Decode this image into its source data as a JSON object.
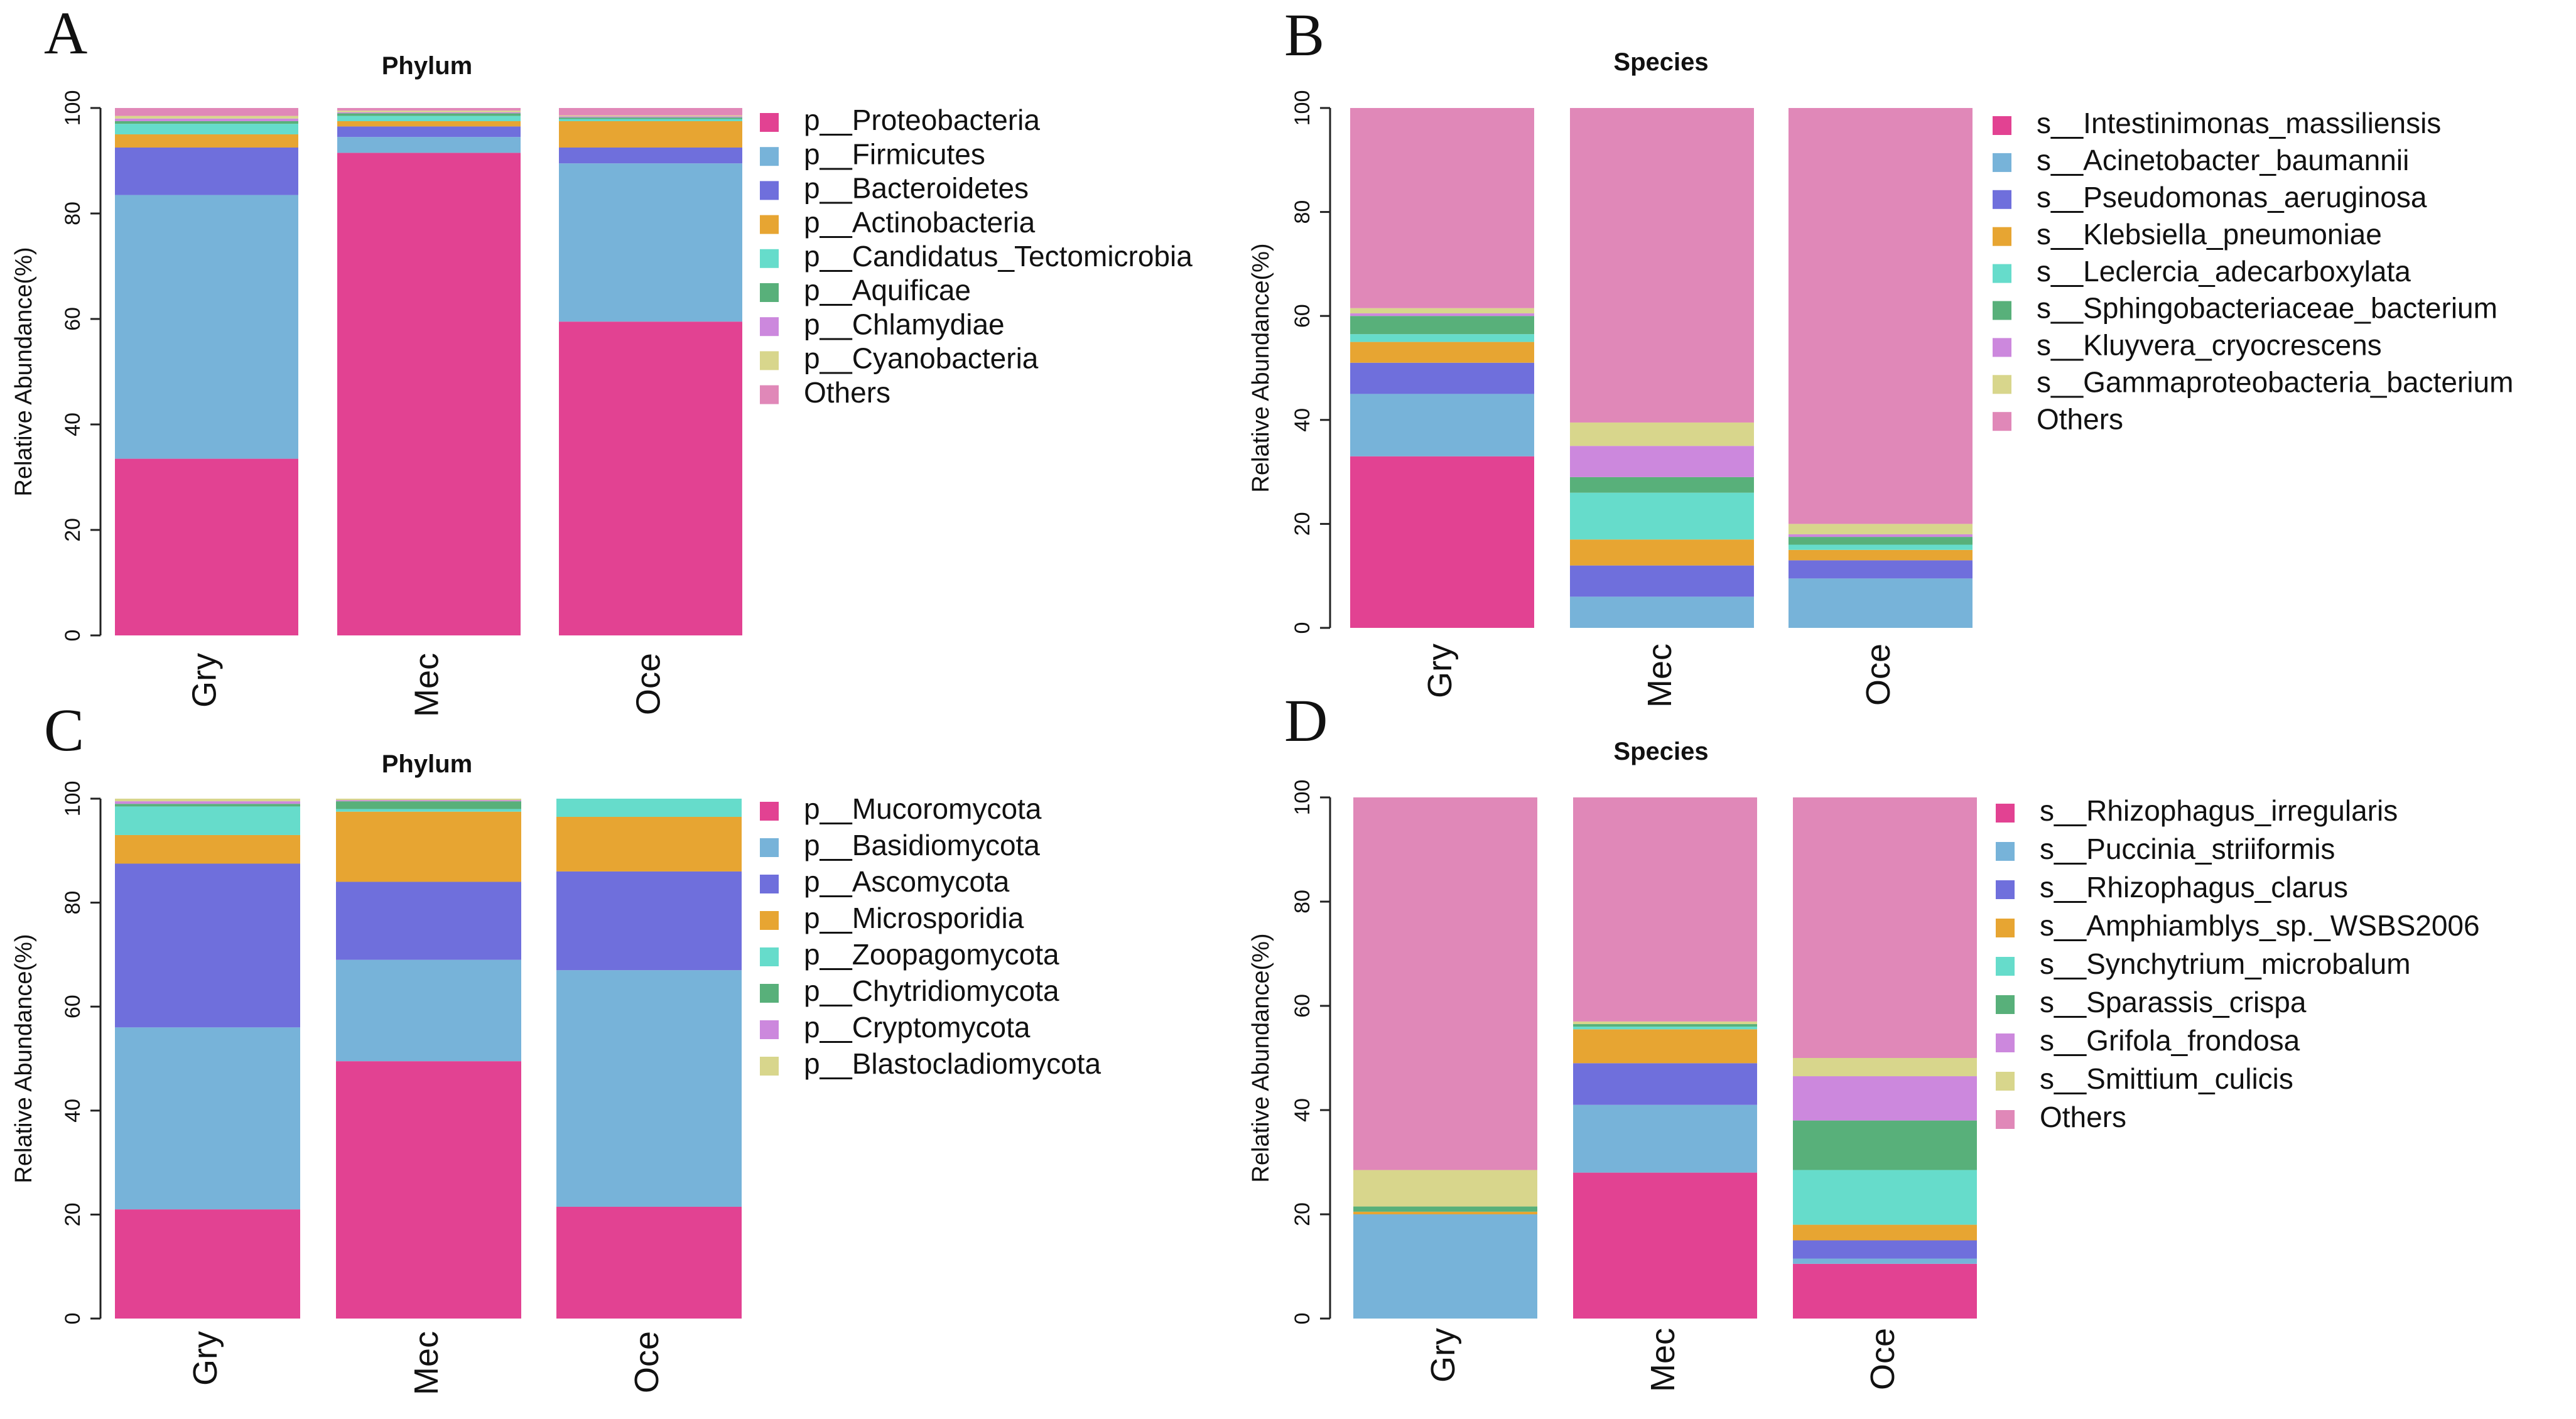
{
  "chart_data": [
    {
      "panel": "A",
      "type": "bar",
      "stacked": true,
      "title": "Phylum",
      "xlabel": "",
      "ylabel": "Relative Abundance(%)",
      "ylim": [
        0,
        100
      ],
      "yticks": [
        "0",
        "20",
        "40",
        "60",
        "80",
        "100"
      ],
      "categories": [
        "Gry",
        "Mec",
        "Oce"
      ],
      "legend_position": "right",
      "series": [
        {
          "name": "p__Proteobacteria",
          "color": "#e24292",
          "values": [
            33.5,
            91.5,
            59.5
          ]
        },
        {
          "name": "p__Firmicutes",
          "color": "#77b3d9",
          "values": [
            50.0,
            3.0,
            30.0
          ]
        },
        {
          "name": "p__Bacteroidetes",
          "color": "#6f6fdc",
          "values": [
            9.0,
            2.0,
            3.0
          ]
        },
        {
          "name": "p__Actinobacteria",
          "color": "#e7a532",
          "values": [
            2.5,
            1.0,
            5.0
          ]
        },
        {
          "name": "p__Candidatus_Tectomicrobia",
          "color": "#66dccb",
          "values": [
            2.0,
            1.0,
            0.4
          ]
        },
        {
          "name": "p__Aquificae",
          "color": "#58b07a",
          "values": [
            0.5,
            0.5,
            0.3
          ]
        },
        {
          "name": "p__Chlamydiae",
          "color": "#cc88dd",
          "values": [
            0.5,
            0.2,
            0.2
          ]
        },
        {
          "name": "p__Cyanobacteria",
          "color": "#d8d68c",
          "values": [
            0.5,
            0.3,
            0.2
          ]
        },
        {
          "name": "Others",
          "color": "#e088b8",
          "values": [
            1.5,
            0.5,
            1.4
          ]
        }
      ]
    },
    {
      "panel": "B",
      "type": "bar",
      "stacked": true,
      "title": "Species",
      "xlabel": "",
      "ylabel": "Relative Abundance(%)",
      "ylim": [
        0,
        100
      ],
      "yticks": [
        "0",
        "20",
        "40",
        "60",
        "80",
        "100"
      ],
      "categories": [
        "Gry",
        "Mec",
        "Oce"
      ],
      "legend_position": "right",
      "series": [
        {
          "name": "s__Intestinimonas_massiliensis",
          "color": "#e24292",
          "values": [
            33.0,
            0.0,
            0.0
          ]
        },
        {
          "name": "s__Acinetobacter_baumannii",
          "color": "#77b3d9",
          "values": [
            12.0,
            6.0,
            9.5
          ]
        },
        {
          "name": "s__Pseudomonas_aeruginosa",
          "color": "#6f6fdc",
          "values": [
            6.0,
            6.0,
            3.5
          ]
        },
        {
          "name": "s__Klebsiella_pneumoniae",
          "color": "#e7a532",
          "values": [
            4.0,
            5.0,
            2.0
          ]
        },
        {
          "name": "s__Leclercia_adecarboxylata",
          "color": "#66dccb",
          "values": [
            1.5,
            9.0,
            1.0
          ]
        },
        {
          "name": "s__Sphingobacteriaceae_bacterium",
          "color": "#58b07a",
          "values": [
            3.5,
            3.0,
            1.5
          ]
        },
        {
          "name": "s__Kluyvera_cryocrescens",
          "color": "#cc88dd",
          "values": [
            0.5,
            6.0,
            0.5
          ]
        },
        {
          "name": "s__Gammaproteobacteria_bacterium",
          "color": "#d8d68c",
          "values": [
            1.0,
            4.5,
            2.0
          ]
        },
        {
          "name": "Others",
          "color": "#e088b8",
          "values": [
            38.5,
            60.5,
            80.0
          ]
        }
      ]
    },
    {
      "panel": "C",
      "type": "bar",
      "stacked": true,
      "title": "Phylum",
      "xlabel": "",
      "ylabel": "Relative Abundance(%)",
      "ylim": [
        0,
        100
      ],
      "yticks": [
        "0",
        "20",
        "40",
        "60",
        "80",
        "100"
      ],
      "categories": [
        "Gry",
        "Mec",
        "Oce"
      ],
      "legend_position": "right",
      "series": [
        {
          "name": "p__Mucoromycota",
          "color": "#e24292",
          "values": [
            21.0,
            49.5,
            21.5
          ]
        },
        {
          "name": "p__Basidiomycota",
          "color": "#77b3d9",
          "values": [
            35.0,
            19.5,
            45.5
          ]
        },
        {
          "name": "p__Ascomycota",
          "color": "#6f6fdc",
          "values": [
            31.5,
            15.0,
            19.0
          ]
        },
        {
          "name": "p__Microsporidia",
          "color": "#e7a532",
          "values": [
            5.5,
            13.5,
            10.5
          ]
        },
        {
          "name": "p__Zoopagomycota",
          "color": "#66dccb",
          "values": [
            5.5,
            0.5,
            3.5
          ]
        },
        {
          "name": "p__Chytridiomycota",
          "color": "#58b07a",
          "values": [
            0.5,
            1.5,
            0.0
          ]
        },
        {
          "name": "p__Cryptomycota",
          "color": "#cc88dd",
          "values": [
            0.5,
            0.2,
            0.0
          ]
        },
        {
          "name": "p__Blastocladiomycota",
          "color": "#d8d68c",
          "values": [
            0.5,
            0.3,
            0.0
          ]
        }
      ]
    },
    {
      "panel": "D",
      "type": "bar",
      "stacked": true,
      "title": "Species",
      "xlabel": "",
      "ylabel": "Relative Abundance(%)",
      "ylim": [
        0,
        100
      ],
      "yticks": [
        "0",
        "20",
        "40",
        "60",
        "80",
        "100"
      ],
      "categories": [
        "Gry",
        "Mec",
        "Oce"
      ],
      "legend_position": "right",
      "series": [
        {
          "name": "s__Rhizophagus_irregularis",
          "color": "#e24292",
          "values": [
            0.0,
            28.0,
            10.5
          ]
        },
        {
          "name": "s__Puccinia_striiformis",
          "color": "#77b3d9",
          "values": [
            20.0,
            13.0,
            1.0
          ]
        },
        {
          "name": "s__Rhizophagus_clarus",
          "color": "#6f6fdc",
          "values": [
            0.0,
            8.0,
            3.5
          ]
        },
        {
          "name": "s__Amphiamblys_sp._WSBS2006",
          "color": "#e7a532",
          "values": [
            0.5,
            6.5,
            3.0
          ]
        },
        {
          "name": "s__Synchytrium_microbalum",
          "color": "#66dccb",
          "values": [
            0.0,
            0.5,
            10.5
          ]
        },
        {
          "name": "s__Sparassis_crispa",
          "color": "#58b07a",
          "values": [
            1.0,
            0.5,
            9.5
          ]
        },
        {
          "name": "s__Grifola_frondosa",
          "color": "#cc88dd",
          "values": [
            0.0,
            0.0,
            8.5
          ]
        },
        {
          "name": "s__Smittium_culicis",
          "color": "#d8d68c",
          "values": [
            7.0,
            0.5,
            3.5
          ]
        },
        {
          "name": "Others",
          "color": "#e088b8",
          "values": [
            71.5,
            43.0,
            50.0
          ]
        }
      ]
    }
  ]
}
